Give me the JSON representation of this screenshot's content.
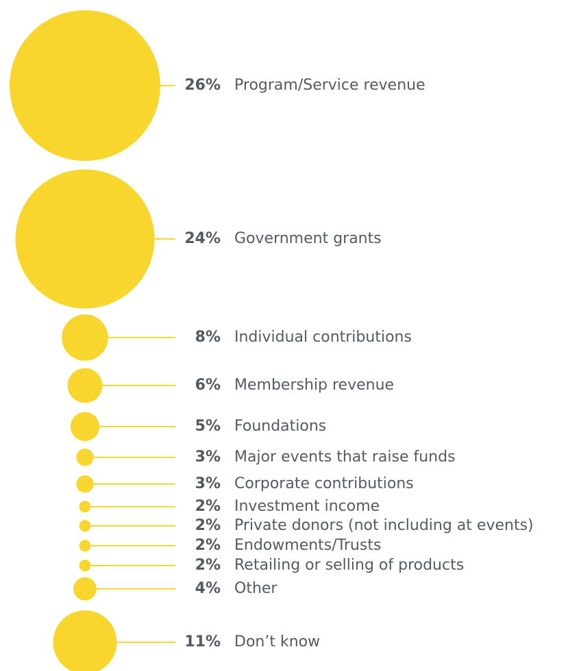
{
  "chart_data": {
    "type": "bubble",
    "categories": [
      "Program/Service revenue",
      "Government grants",
      "Individual contributions",
      "Membership revenue",
      "Foundations",
      "Major events that raise funds",
      "Corporate contributions",
      "Investment income",
      "Private donors (not including at events)",
      "Endowments/Trusts",
      "Retailing or selling of products",
      "Other",
      "Don’t know"
    ],
    "values": [
      26,
      24,
      8,
      6,
      5,
      3,
      3,
      2,
      2,
      2,
      2,
      4,
      11
    ],
    "value_labels": [
      "26%",
      "24%",
      "8%",
      "6%",
      "5%",
      "3%",
      "3%",
      "2%",
      "2%",
      "2%",
      "2%",
      "4%",
      "11%"
    ],
    "color": "#f9d62e"
  }
}
